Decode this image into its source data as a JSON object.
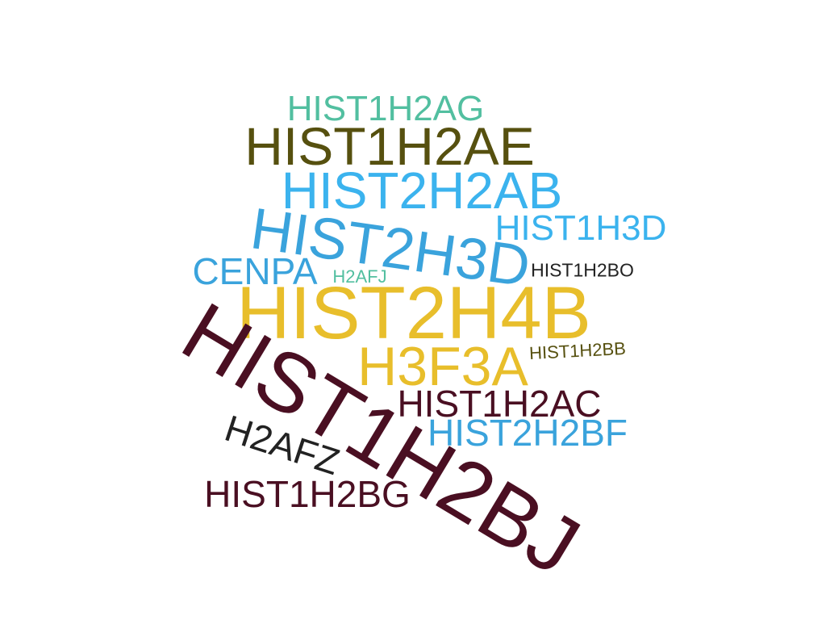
{
  "colors": {
    "teal": "#52BFA0",
    "olive": "#56500F",
    "sky": "#3BB3EE",
    "blue": "#3AA3DC",
    "gold": "#E8BE2B",
    "maroon": "#4A0F22",
    "black": "#222222"
  },
  "words": [
    {
      "text": "HIST1H2AG",
      "color": "teal"
    },
    {
      "text": "HIST1H2AE",
      "color": "olive"
    },
    {
      "text": "HIST2H2AB",
      "color": "sky"
    },
    {
      "text": "HIST1H3D",
      "color": "sky"
    },
    {
      "text": "HIST2H3D",
      "color": "blue"
    },
    {
      "text": "CENPA",
      "color": "blue"
    },
    {
      "text": "H2AFJ",
      "color": "teal"
    },
    {
      "text": "HIST1H2BO",
      "color": "black"
    },
    {
      "text": "HIST2H4B",
      "color": "gold"
    },
    {
      "text": "H3F3A",
      "color": "gold"
    },
    {
      "text": "HIST1H2BB",
      "color": "olive"
    },
    {
      "text": "HIST1H2BJ",
      "color": "maroon"
    },
    {
      "text": "HIST1H2AC",
      "color": "maroon"
    },
    {
      "text": "HIST2H2BF",
      "color": "blue"
    },
    {
      "text": "H2AFZ",
      "color": "black"
    },
    {
      "text": "HIST1H2BG",
      "color": "maroon"
    }
  ]
}
